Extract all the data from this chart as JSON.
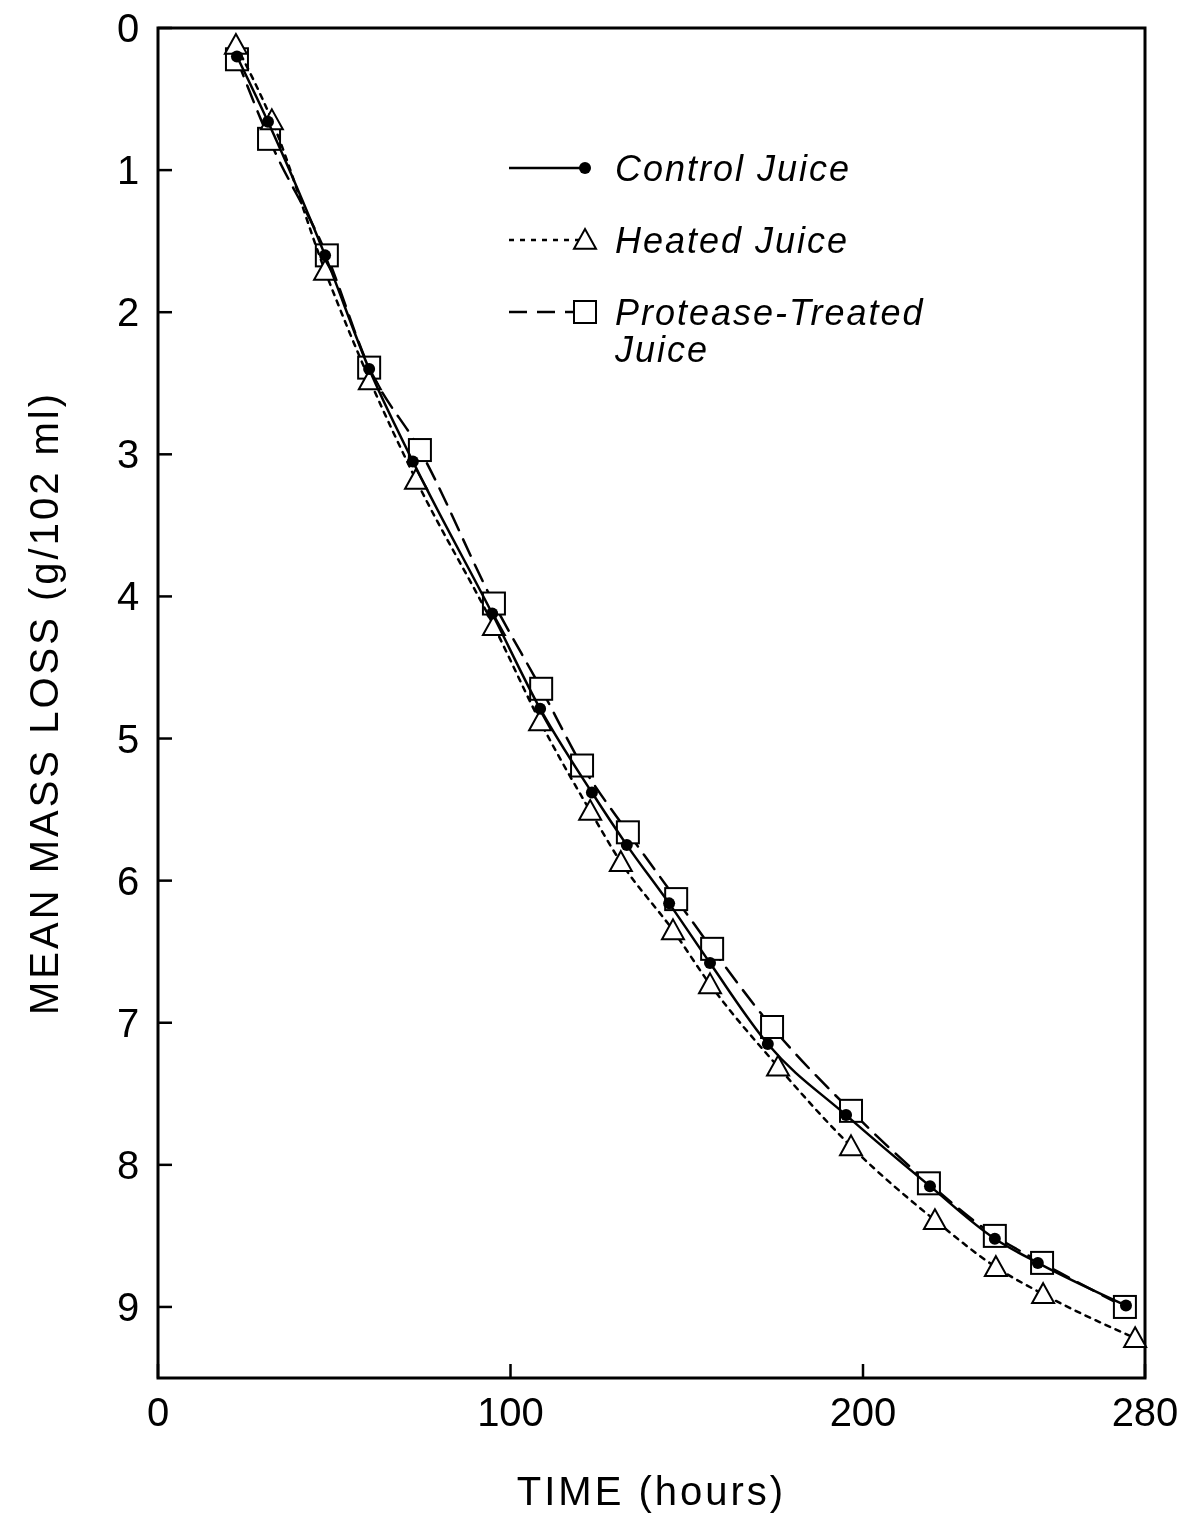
{
  "chart_data": {
    "type": "line",
    "xlabel": "TIME (hours)",
    "ylabel": "MEAN MASS LOSS (g/102 ml)",
    "xlim": [
      0,
      280
    ],
    "xticks": [
      0,
      100,
      200,
      280
    ],
    "ylim": [
      9.5,
      0
    ],
    "yticks": [
      0,
      1,
      2,
      3,
      4,
      5,
      6,
      7,
      8,
      9
    ],
    "grid": false,
    "legend": "top right",
    "series": [
      {
        "name": "Control Juice",
        "color": "#000000",
        "marker": "circle",
        "line_style": "solid",
        "x": [
          22.4,
          31.2,
          47.4,
          59.9,
          72.3,
          94.8,
          108.4,
          123.1,
          133.0,
          145.0,
          156.6,
          173.0,
          195.2,
          219.0,
          237.4,
          249.6,
          274.6
        ],
        "values": [
          0.2,
          0.66,
          1.6,
          2.4,
          3.05,
          4.12,
          4.79,
          5.38,
          5.75,
          6.16,
          6.58,
          7.15,
          7.65,
          8.15,
          8.52,
          8.69,
          8.99
        ]
      },
      {
        "name": "Heated Juice",
        "color": "#000000",
        "marker": "triangle",
        "line_style": "dotted",
        "x": [
          22.1,
          32.3,
          47.4,
          60.1,
          73.2,
          95.3,
          108.4,
          122.6,
          131.3,
          146.1,
          156.6,
          175.9,
          196.6,
          220.4,
          237.7,
          251.1,
          277.2
        ],
        "values": [
          0.12,
          0.65,
          1.71,
          2.48,
          3.18,
          4.21,
          4.88,
          5.51,
          5.87,
          6.35,
          6.73,
          7.31,
          7.87,
          8.39,
          8.72,
          8.91,
          9.22
        ]
      },
      {
        "name": "Protease-Treated Juice",
        "color": "#000000",
        "marker": "square",
        "line_style": "dashed",
        "x": [
          22.4,
          31.5,
          47.9,
          59.9,
          74.3,
          95.3,
          108.7,
          120.3,
          133.3,
          147.0,
          157.2,
          174.2,
          196.6,
          218.7,
          237.4,
          250.8,
          274.3
        ],
        "values": [
          0.22,
          0.78,
          1.6,
          2.39,
          2.97,
          4.05,
          4.65,
          5.19,
          5.66,
          6.13,
          6.48,
          7.03,
          7.62,
          8.13,
          8.5,
          8.69,
          9.0
        ]
      }
    ]
  }
}
